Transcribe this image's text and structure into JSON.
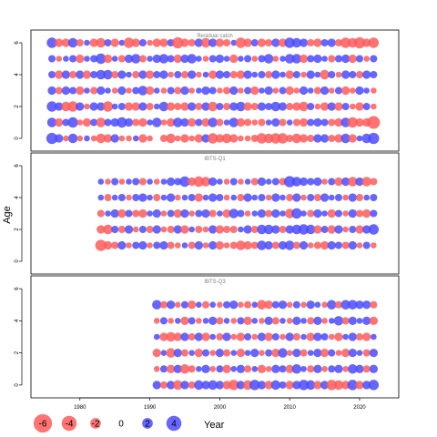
{
  "chart_data": {
    "type": "scatter",
    "encoding": "bubble residual plot; red = negative residual, blue = positive residual, area proportional to magnitude",
    "ylabel": "Age",
    "xlabel": "Year",
    "xlim": [
      1973,
      2025.6
    ],
    "x_ticks": [
      1980,
      1990,
      2000,
      2010,
      2020
    ],
    "colors": {
      "negative": "#ff5a5a",
      "positive": "#4b4bff",
      "axis": "#000000",
      "panel_title": "#808080"
    },
    "legend": {
      "placement": "bottom-left",
      "entries": [
        {
          "label": "-6",
          "value": -6
        },
        {
          "label": "-4",
          "value": -4
        },
        {
          "label": "-2",
          "value": -2
        },
        {
          "label": "0",
          "value": 0
        },
        {
          "label": "2",
          "value": 2
        },
        {
          "label": "4",
          "value": 4
        }
      ]
    },
    "panels": [
      {
        "title": "Residual catch",
        "ages": [
          0,
          1,
          2,
          3,
          4,
          5,
          6
        ],
        "year_start": 1976,
        "year_end": 2022,
        "ylim": [
          -0.8,
          6.8
        ],
        "y_ticks": [
          0,
          2,
          4,
          6
        ],
        "rows": {
          "0": [
            3.5,
            2,
            -1,
            2.5,
            -1,
            1,
            -1,
            -2.5,
            -2,
            2,
            -1,
            -1,
            1,
            -2,
            -1,
            0,
            -1.5,
            -2.5,
            -1,
            -2,
            -1,
            -2,
            2,
            -3,
            -2,
            -2.5,
            -2,
            -1,
            -1,
            -1.5,
            -3,
            -2.5,
            -3,
            -3,
            -1.5,
            -2.5,
            -2,
            -1.5,
            2,
            2,
            -1.5,
            -2,
            2.5,
            -2,
            1,
            2.5,
            3.5
          ],
          "1": [
            2.5,
            -2,
            1.5,
            3,
            -1,
            -2,
            1.5,
            -2.5,
            1.5,
            2,
            3,
            2,
            -1.5,
            -2,
            1,
            2.5,
            -1,
            -2,
            2.5,
            2,
            -2,
            1.5,
            -2,
            2.5,
            -1.5,
            1,
            2.5,
            -2,
            -1.5,
            -1,
            -1.5,
            1,
            2,
            -1.5,
            1,
            -1.5,
            -2,
            1.5,
            2,
            1.5,
            -1.5,
            -2,
            2.5,
            -3,
            -2,
            -2,
            -4.5
          ],
          "2": [
            3,
            2,
            -2.5,
            -3,
            2,
            -1,
            2,
            2,
            -3,
            1,
            1.5,
            -2,
            -2,
            2,
            -1.5,
            1,
            2.5,
            -2,
            -1.5,
            -2,
            2,
            -1.5,
            2,
            -2.5,
            1.5,
            -1.5,
            2,
            2.5,
            -2,
            -1.5,
            2,
            1.5,
            2.5,
            2,
            -1.5,
            -2,
            -2.5,
            1.5,
            -1,
            -2,
            2,
            -2,
            1.5,
            -1,
            -2,
            1.5,
            -1
          ],
          "3": [
            2,
            -1.5,
            2,
            1.5,
            -2,
            1,
            -1.5,
            2,
            1,
            -1,
            2,
            -1,
            1.5,
            2.5,
            -2,
            1,
            -1,
            1.5,
            -1.5,
            2,
            -1,
            1,
            2,
            1.5,
            -1,
            -1.5,
            2,
            -1,
            1.5,
            -2,
            1,
            2,
            -1,
            1.5,
            -2,
            -1,
            2,
            1,
            -1.5,
            2,
            -1,
            1.5,
            -2,
            -1,
            2,
            1,
            -1
          ],
          "4": [
            1.5,
            -2,
            2,
            -1.5,
            2,
            -2,
            1.5,
            2.5,
            2.5,
            -1.5,
            2,
            1,
            -1.5,
            2,
            -2,
            1.5,
            2,
            -1,
            1.5,
            -1.5,
            2,
            -1,
            1,
            -2,
            2,
            1.5,
            -1.5,
            -2,
            2,
            1,
            1.5,
            -1.5,
            2,
            1,
            -2,
            1.5,
            -1,
            2,
            1,
            -2.5,
            1.5,
            -1,
            2,
            1.5,
            -1.5,
            2,
            1.5
          ],
          "5": [
            1.5,
            -1,
            1,
            1.5,
            -2,
            1,
            1.5,
            3,
            -2,
            1,
            -1.5,
            2,
            2.5,
            -1.5,
            1,
            2,
            2.5,
            1.5,
            -2,
            2,
            2.5,
            1,
            -1,
            1.5,
            2,
            1,
            -2,
            1,
            1.5,
            -1,
            1.5,
            2.5,
            -1,
            1,
            2.5,
            2.5,
            -2,
            1.5,
            2,
            1,
            -1.5,
            1.5,
            2,
            -2,
            1.5,
            -1,
            1.5
          ],
          "6": [
            3,
            -2,
            -2,
            2.5,
            -1.5,
            1,
            -2,
            -2.5,
            1.5,
            -2,
            1,
            -3,
            -2,
            1.5,
            -1,
            -2,
            -2,
            1.5,
            -3.5,
            -2,
            -1.5,
            2,
            -2.5,
            2,
            -2,
            -1.5,
            1,
            -3,
            -2,
            1.5,
            -2,
            -1.5,
            2,
            -2,
            3,
            2.5,
            2,
            -1.5,
            -2,
            1.5,
            2,
            -1.5,
            -3,
            -2.5,
            -3.5,
            -2,
            -3
          ]
        }
      },
      {
        "title": "IBTS-Q1",
        "ages": [
          1,
          2,
          3,
          4,
          5
        ],
        "year_start": 1983,
        "year_end": 2022,
        "ylim": [
          -0.8,
          6.8
        ],
        "y_ticks": [
          0,
          2,
          4,
          6
        ],
        "rows": {
          "1": [
            -3.5,
            -2,
            -1.5,
            2,
            -1,
            1.5,
            2,
            -1,
            1.5,
            2,
            -1.5,
            -1,
            1,
            -1.5,
            2,
            -1,
            2,
            -2,
            -1,
            -1.5,
            -2.5,
            -2,
            -1.5,
            2.5,
            2,
            -1.5,
            2,
            2.5,
            -1.5,
            2,
            -1,
            -1.5,
            -2,
            2,
            1.5,
            -1.5,
            2,
            -1,
            1.5,
            -1
          ],
          "2": [
            -2,
            -2.5,
            1.5,
            -1.5,
            2,
            -1,
            1.5,
            -1.5,
            2,
            -1,
            -1.5,
            2,
            -2,
            1,
            -1.5,
            -1,
            2,
            -2,
            -1.5,
            -1.5,
            1,
            2,
            -1.5,
            2.5,
            2.5,
            2,
            -1.5,
            2,
            2.5,
            3,
            2.5,
            -2,
            1.5,
            -2,
            2,
            -1,
            1.5,
            -2,
            2,
            3
          ],
          "3": [
            -1.5,
            1,
            2,
            -2,
            1.5,
            -1.5,
            -2,
            1,
            2,
            -1,
            1.5,
            -2,
            2,
            -1,
            1.5,
            2,
            -1.5,
            1,
            -2,
            2.5,
            1.5,
            -1,
            1,
            2,
            -1.5,
            2,
            1,
            -2.5,
            3,
            1,
            -1.5,
            2,
            1,
            -2,
            1.5,
            -1,
            2,
            -1.5,
            -2,
            1.5
          ],
          "4": [
            1,
            -1.5,
            1,
            1.5,
            -1,
            1.5,
            2,
            1,
            -1.5,
            1,
            2,
            -1,
            1,
            1.5,
            -2,
            1,
            2,
            1.5,
            -1,
            1,
            -1.5,
            2,
            1,
            1.5,
            -1,
            2,
            1,
            -1.5,
            2,
            -1,
            1.5,
            -1.5,
            2,
            1,
            1.5,
            -1,
            2,
            -1.5,
            1,
            1.5
          ],
          "5": [
            1,
            -1,
            1.5,
            -1,
            1,
            1.5,
            -1.5,
            1,
            -1,
            1,
            2,
            1.5,
            3,
            -2,
            -3,
            -2.5,
            2,
            1,
            -1,
            1.5,
            -1,
            1,
            -1.5,
            2,
            1,
            1.5,
            -1.5,
            3.5,
            2.5,
            2,
            1.5,
            2,
            -1,
            1.5,
            -2,
            2,
            -2.5,
            2,
            -2.5,
            -1.5
          ]
        }
      },
      {
        "title": "IBTS-Q3",
        "ages": [
          0,
          1,
          2,
          3,
          4,
          5
        ],
        "year_start": 1991,
        "year_end": 2022,
        "ylim": [
          -0.8,
          6.8
        ],
        "y_ticks": [
          0,
          2,
          4,
          6
        ],
        "rows": {
          "0": [
            2,
            -1.5,
            2,
            -2.5,
            2,
            -1.5,
            2.5,
            2,
            2.5,
            2,
            -2,
            -3,
            2,
            -2.5,
            3,
            2,
            -2,
            2.5,
            1.5,
            -2,
            2,
            3,
            2.5,
            -2,
            2,
            -3,
            -2.5,
            -2,
            3,
            -2,
            2,
            3
          ],
          "1": [
            -1,
            1.5,
            -2,
            2,
            -2.5,
            -1.5,
            1,
            2,
            -1,
            1.5,
            -2,
            1,
            2,
            -1.5,
            1,
            -2,
            -1,
            2,
            1.5,
            -2,
            2.5,
            1,
            -1.5,
            2,
            -1,
            1.5,
            2,
            -1,
            2.5,
            2,
            -1.5,
            2
          ],
          "2": [
            -2,
            1,
            -2.5,
            2,
            -1.5,
            1,
            -2,
            1.5,
            -1,
            2,
            -1.5,
            1,
            -2,
            1,
            2,
            -1,
            1.5,
            -2,
            2.5,
            -1,
            2,
            -1.5,
            1,
            2,
            -2,
            1.5,
            -1,
            -2,
            2,
            1,
            -1.5,
            2
          ],
          "3": [
            1,
            -2,
            -2.5,
            -2,
            2,
            -1.5,
            2,
            -2,
            1,
            -1.5,
            2,
            -1,
            -2,
            1.5,
            -1,
            2,
            -2,
            1.5,
            -1,
            2,
            -1.5,
            1,
            -2,
            2,
            1.5,
            -1,
            -2,
            1,
            2,
            -1.5,
            -2,
            1
          ],
          "4": [
            -1,
            1.5,
            -1,
            1,
            -2,
            1.5,
            -1,
            1,
            2,
            -1.5,
            1,
            -1,
            1.5,
            -2,
            1,
            -1,
            2,
            -1.5,
            1,
            -1,
            2,
            1,
            -1.5,
            2,
            -1,
            1,
            2.5,
            -1.5,
            2,
            1,
            2,
            -2
          ],
          "5": [
            2.5,
            -1.5,
            2,
            -1,
            1.5,
            -2,
            1,
            -1.5,
            1,
            -1,
            1.5,
            2,
            -1,
            -1.5,
            1,
            -2.5,
            -2,
            1.5,
            2,
            -1,
            1.5,
            -1,
            2,
            1,
            -1,
            2.5,
            -1.5,
            2.5,
            2.5,
            2,
            2,
            -1.5
          ]
        }
      }
    ]
  }
}
